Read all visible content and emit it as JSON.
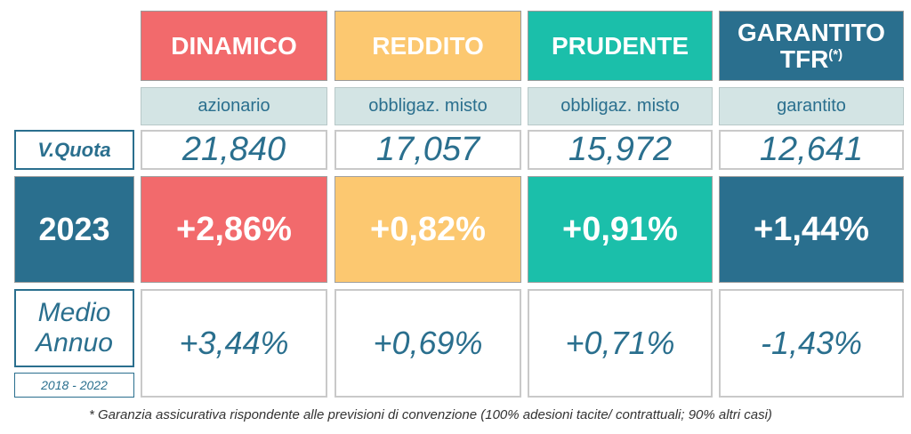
{
  "colors": {
    "dinamico": "#f26a6c",
    "reddito": "#fcc870",
    "prudente": "#1bbfaa",
    "garantito": "#2a6f8e",
    "sub_bg": "#d3e4e4",
    "text": "#2a6f8e"
  },
  "funds": [
    {
      "name": "DINAMICO",
      "type": "azionario",
      "quota": "21,840",
      "y2023": "+2,86%",
      "avg": "+3,44%"
    },
    {
      "name": "REDDITO",
      "type": "obbligaz. misto",
      "quota": "17,057",
      "y2023": "+0,82%",
      "avg": "+0,69%"
    },
    {
      "name": "PRUDENTE",
      "type": "obbligaz. misto",
      "quota": "15,972",
      "y2023": "+0,91%",
      "avg": "+0,71%"
    },
    {
      "name": "GARANTITO",
      "name_line2": "TFR",
      "name_sup": "(*)",
      "type": "garantito",
      "quota": "12,641",
      "y2023": "+1,44%",
      "avg": "-1,43%"
    }
  ],
  "row_labels": {
    "quota": "V.Quota",
    "year": "2023",
    "avg_line1": "Medio",
    "avg_line2": "Annuo",
    "avg_period": "2018 - 2022"
  },
  "footnote": "* Garanzia assicurativa rispondente alle previsioni di convenzione (100% adesioni tacite/ contrattuali; 90% altri casi)"
}
